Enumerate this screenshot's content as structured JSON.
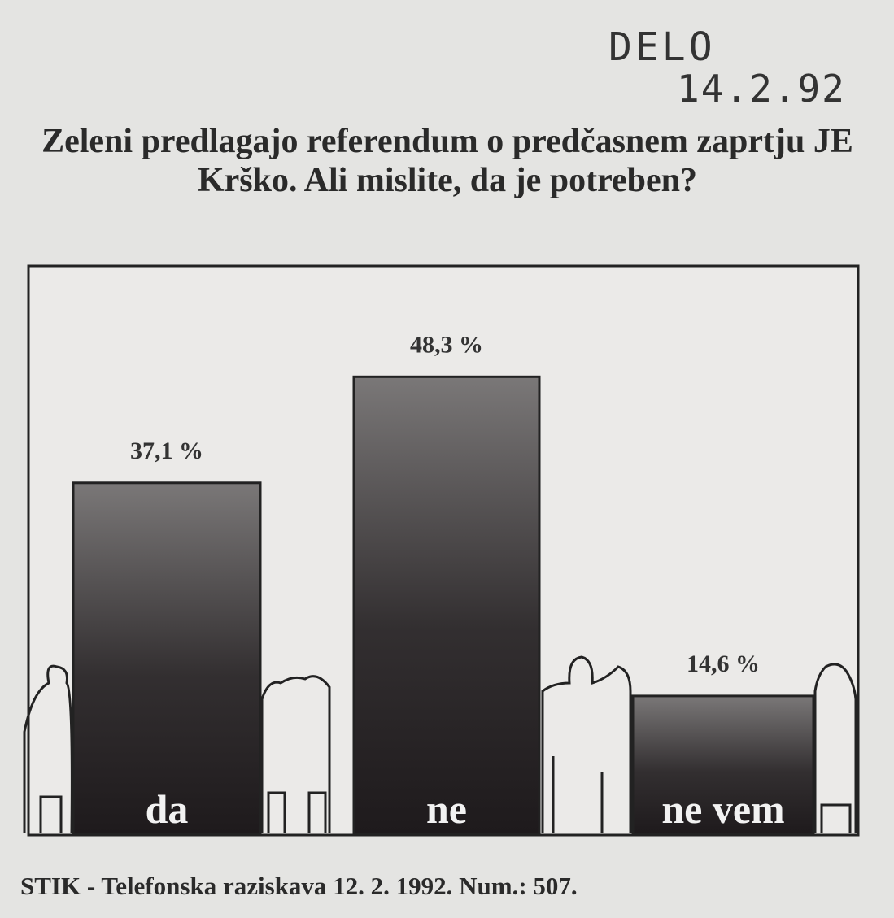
{
  "chart_data": {
    "type": "bar",
    "annotations": [
      "DELO",
      "14.2.92"
    ],
    "title": "Zeleni predlagajo referendum o predčasnem zaprtju JE Krško. Ali mislite, da je potreben?",
    "categories": [
      "da",
      "ne",
      "ne vem"
    ],
    "values": [
      37.1,
      48.3,
      14.6
    ],
    "value_labels": [
      "37,1 %",
      "48,3 %",
      "14,6 %"
    ],
    "color": "#1e1a1c",
    "source": "STIK - Telefonska raziskava 12. 2. 1992. Num.: 507."
  }
}
